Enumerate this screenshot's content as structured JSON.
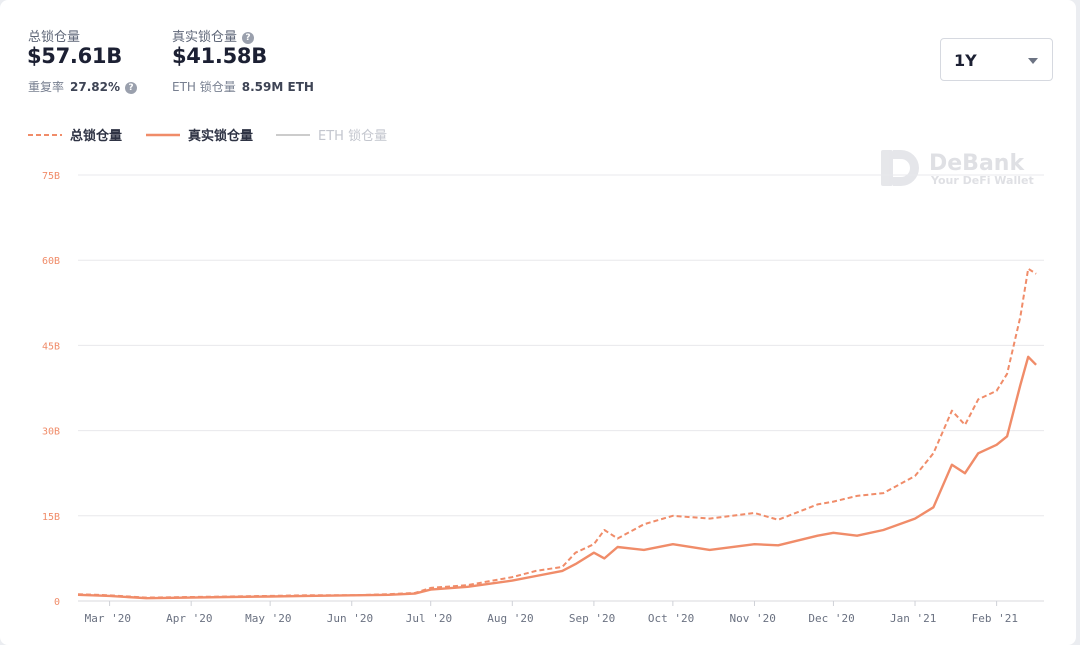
{
  "stats": {
    "total_label": "总锁仓量",
    "total_value": "$57.61B",
    "real_label": "真实锁仓量",
    "real_value": "$41.58B",
    "repeat_label": "重复率",
    "repeat_value": "27.82%",
    "eth_label": "ETH 锁仓量",
    "eth_value": "8.59M ETH"
  },
  "range_select": {
    "value": "1Y"
  },
  "legend": {
    "total": "总锁仓量",
    "real": "真实锁仓量",
    "eth": "ETH 锁仓量"
  },
  "watermark": {
    "brand": "DeBank",
    "tagline": "Your DeFi Wallet"
  },
  "colors": {
    "series": "#f08c69",
    "eth_series": "#cccccc",
    "tick_label": "#f08c69",
    "grid": "#e8e8ec"
  },
  "icons": {
    "help": "question-circle-icon",
    "dropdown": "caret-down-icon",
    "logo": "debank-logo-icon"
  },
  "chart_data": {
    "type": "line",
    "x": [
      "2020-02-18",
      "2020-03-01",
      "2020-03-15",
      "2020-04-01",
      "2020-04-15",
      "2020-05-01",
      "2020-05-15",
      "2020-06-01",
      "2020-06-15",
      "2020-06-25",
      "2020-07-01",
      "2020-07-15",
      "2020-08-01",
      "2020-08-10",
      "2020-08-20",
      "2020-08-25",
      "2020-09-01",
      "2020-09-05",
      "2020-09-10",
      "2020-09-20",
      "2020-10-01",
      "2020-10-15",
      "2020-11-01",
      "2020-11-10",
      "2020-11-25",
      "2020-12-01",
      "2020-12-10",
      "2020-12-20",
      "2021-01-01",
      "2021-01-08",
      "2021-01-15",
      "2021-01-20",
      "2021-01-25",
      "2021-02-01",
      "2021-02-05",
      "2021-02-10",
      "2021-02-13",
      "2021-02-16"
    ],
    "series": [
      {
        "name": "总锁仓量",
        "style": "dashed",
        "values": [
          1.2,
          1.0,
          0.6,
          0.7,
          0.8,
          0.9,
          1.0,
          1.0,
          1.2,
          1.4,
          2.3,
          2.8,
          4.2,
          5.3,
          6.0,
          8.5,
          10.0,
          12.5,
          11.0,
          13.5,
          15.0,
          14.5,
          15.5,
          14.3,
          17.0,
          17.5,
          18.5,
          19.0,
          22.0,
          26.0,
          33.5,
          31.0,
          35.5,
          37.0,
          40.0,
          50.0,
          58.5,
          57.61
        ]
      },
      {
        "name": "真实锁仓量",
        "style": "solid",
        "values": [
          1.1,
          0.9,
          0.5,
          0.6,
          0.7,
          0.8,
          0.9,
          1.0,
          1.1,
          1.3,
          2.0,
          2.5,
          3.6,
          4.4,
          5.3,
          6.5,
          8.5,
          7.5,
          9.5,
          9.0,
          10.0,
          9.0,
          10.0,
          9.8,
          11.5,
          12.0,
          11.5,
          12.5,
          14.5,
          16.5,
          24.0,
          22.5,
          26.0,
          27.5,
          29.0,
          38.0,
          43.0,
          41.58
        ]
      }
    ],
    "x_tick_labels": [
      "Mar '20",
      "Apr '20",
      "May '20",
      "Jun '20",
      "Jul '20",
      "Aug '20",
      "Sep '20",
      "Oct '20",
      "Nov '20",
      "Dec '20",
      "Jan '21",
      "Feb '21"
    ],
    "y_ticks": [
      0,
      15,
      30,
      45,
      60,
      75
    ],
    "y_tick_labels": [
      "0",
      "15B",
      "30B",
      "45B",
      "60B",
      "75B"
    ],
    "ylim": [
      0,
      75
    ],
    "xlim": [
      "2020-02-18",
      "2021-02-19"
    ],
    "grid": true,
    "legend_position": "top-left"
  }
}
